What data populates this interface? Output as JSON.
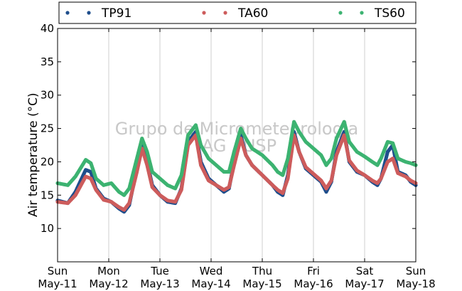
{
  "chart_data": {
    "type": "scatter",
    "ylabel": "Air temperature (°C)",
    "ylim": [
      5,
      40
    ],
    "yticks": [
      10,
      15,
      20,
      25,
      30,
      35,
      40
    ],
    "xlim": [
      0,
      7
    ],
    "xticks": [
      {
        "x": 0,
        "day": "Sun",
        "date": "May-11"
      },
      {
        "x": 1,
        "day": "Mon",
        "date": "May-12"
      },
      {
        "x": 2,
        "day": "Tue",
        "date": "May-13"
      },
      {
        "x": 3,
        "day": "Wed",
        "date": "May-14"
      },
      {
        "x": 4,
        "day": "Thu",
        "date": "May-15"
      },
      {
        "x": 5,
        "day": "Fri",
        "date": "May-16"
      },
      {
        "x": 6,
        "day": "Sat",
        "date": "May-17"
      },
      {
        "x": 7,
        "day": "Sun",
        "date": "May-18"
      }
    ],
    "grid": "vertical",
    "legend_position": "top",
    "watermark": [
      "Grupo de Micrometeorologia",
      "IAG / USP"
    ],
    "series": [
      {
        "name": "TP91",
        "color": "#1f4e8c",
        "points": [
          [
            0,
            14.2
          ],
          [
            0.2,
            13.8
          ],
          [
            0.35,
            15.5
          ],
          [
            0.55,
            18.8
          ],
          [
            0.65,
            18.5
          ],
          [
            0.75,
            16.0
          ],
          [
            0.9,
            14.5
          ],
          [
            1.05,
            14.0
          ],
          [
            1.2,
            13.0
          ],
          [
            1.3,
            12.5
          ],
          [
            1.4,
            13.5
          ],
          [
            1.55,
            19.0
          ],
          [
            1.65,
            23.0
          ],
          [
            1.75,
            20.0
          ],
          [
            1.85,
            16.5
          ],
          [
            2.0,
            15.0
          ],
          [
            2.15,
            14.0
          ],
          [
            2.3,
            13.8
          ],
          [
            2.42,
            16.0
          ],
          [
            2.55,
            23.0
          ],
          [
            2.7,
            24.5
          ],
          [
            2.8,
            20.0
          ],
          [
            2.95,
            17.5
          ],
          [
            3.1,
            16.5
          ],
          [
            3.25,
            15.5
          ],
          [
            3.35,
            16.0
          ],
          [
            3.45,
            20.0
          ],
          [
            3.58,
            24.0
          ],
          [
            3.68,
            21.0
          ],
          [
            3.8,
            19.5
          ],
          [
            4.0,
            18.0
          ],
          [
            4.2,
            16.5
          ],
          [
            4.3,
            15.5
          ],
          [
            4.4,
            15.0
          ],
          [
            4.5,
            18.0
          ],
          [
            4.62,
            24.5
          ],
          [
            4.72,
            21.5
          ],
          [
            4.85,
            19.0
          ],
          [
            5.0,
            18.0
          ],
          [
            5.15,
            17.0
          ],
          [
            5.25,
            15.5
          ],
          [
            5.35,
            17.0
          ],
          [
            5.45,
            21.5
          ],
          [
            5.6,
            24.5
          ],
          [
            5.7,
            20.0
          ],
          [
            5.85,
            18.5
          ],
          [
            6.0,
            18.0
          ],
          [
            6.15,
            17.0
          ],
          [
            6.25,
            16.5
          ],
          [
            6.32,
            17.5
          ],
          [
            6.45,
            21.5
          ],
          [
            6.55,
            22.5
          ],
          [
            6.65,
            18.5
          ],
          [
            6.8,
            18.0
          ],
          [
            6.9,
            17.0
          ],
          [
            7.0,
            16.5
          ]
        ]
      },
      {
        "name": "TA60",
        "color": "#cd5c5c",
        "points": [
          [
            0,
            14.0
          ],
          [
            0.2,
            13.8
          ],
          [
            0.35,
            15.0
          ],
          [
            0.55,
            17.8
          ],
          [
            0.65,
            17.5
          ],
          [
            0.75,
            15.8
          ],
          [
            0.9,
            14.3
          ],
          [
            1.05,
            14.0
          ],
          [
            1.2,
            13.2
          ],
          [
            1.3,
            12.8
          ],
          [
            1.4,
            13.8
          ],
          [
            1.55,
            18.5
          ],
          [
            1.65,
            22.0
          ],
          [
            1.75,
            19.5
          ],
          [
            1.85,
            16.2
          ],
          [
            2.0,
            15.0
          ],
          [
            2.15,
            14.2
          ],
          [
            2.3,
            14.0
          ],
          [
            2.42,
            15.8
          ],
          [
            2.55,
            22.5
          ],
          [
            2.7,
            24.0
          ],
          [
            2.8,
            19.5
          ],
          [
            2.95,
            17.2
          ],
          [
            3.1,
            16.5
          ],
          [
            3.25,
            15.8
          ],
          [
            3.35,
            16.2
          ],
          [
            3.45,
            19.5
          ],
          [
            3.58,
            23.5
          ],
          [
            3.68,
            21.0
          ],
          [
            3.8,
            19.5
          ],
          [
            4.0,
            18.0
          ],
          [
            4.2,
            16.5
          ],
          [
            4.3,
            15.8
          ],
          [
            4.4,
            15.3
          ],
          [
            4.5,
            17.5
          ],
          [
            4.62,
            24.0
          ],
          [
            4.72,
            21.5
          ],
          [
            4.85,
            19.2
          ],
          [
            5.0,
            18.2
          ],
          [
            5.15,
            17.2
          ],
          [
            5.25,
            16.0
          ],
          [
            5.35,
            17.2
          ],
          [
            5.45,
            21.0
          ],
          [
            5.6,
            24.0
          ],
          [
            5.7,
            20.2
          ],
          [
            5.85,
            18.7
          ],
          [
            6.0,
            18.0
          ],
          [
            6.15,
            17.2
          ],
          [
            6.25,
            16.8
          ],
          [
            6.32,
            17.5
          ],
          [
            6.45,
            20.0
          ],
          [
            6.55,
            20.5
          ],
          [
            6.65,
            18.3
          ],
          [
            6.8,
            17.8
          ],
          [
            6.9,
            17.2
          ],
          [
            7.0,
            16.8
          ]
        ]
      },
      {
        "name": "TS60",
        "color": "#3cb371",
        "points": [
          [
            0,
            16.8
          ],
          [
            0.2,
            16.5
          ],
          [
            0.35,
            17.8
          ],
          [
            0.55,
            20.3
          ],
          [
            0.65,
            19.8
          ],
          [
            0.75,
            17.5
          ],
          [
            0.9,
            16.5
          ],
          [
            1.05,
            16.8
          ],
          [
            1.2,
            15.5
          ],
          [
            1.3,
            15.0
          ],
          [
            1.4,
            16.0
          ],
          [
            1.55,
            20.5
          ],
          [
            1.65,
            23.5
          ],
          [
            1.75,
            21.5
          ],
          [
            1.85,
            18.5
          ],
          [
            2.0,
            17.5
          ],
          [
            2.15,
            16.5
          ],
          [
            2.3,
            16.0
          ],
          [
            2.42,
            18.0
          ],
          [
            2.55,
            24.0
          ],
          [
            2.7,
            25.5
          ],
          [
            2.8,
            22.5
          ],
          [
            2.95,
            20.5
          ],
          [
            3.1,
            19.5
          ],
          [
            3.25,
            18.5
          ],
          [
            3.35,
            18.5
          ],
          [
            3.45,
            21.5
          ],
          [
            3.58,
            25.0
          ],
          [
            3.68,
            23.5
          ],
          [
            3.8,
            22.0
          ],
          [
            4.0,
            21.0
          ],
          [
            4.2,
            19.5
          ],
          [
            4.3,
            18.5
          ],
          [
            4.4,
            18.0
          ],
          [
            4.5,
            20.5
          ],
          [
            4.62,
            26.0
          ],
          [
            4.72,
            24.5
          ],
          [
            4.85,
            23.0
          ],
          [
            5.0,
            22.0
          ],
          [
            5.15,
            21.0
          ],
          [
            5.25,
            19.5
          ],
          [
            5.35,
            20.5
          ],
          [
            5.45,
            23.5
          ],
          [
            5.6,
            26.0
          ],
          [
            5.7,
            23.0
          ],
          [
            5.85,
            21.5
          ],
          [
            6.0,
            20.8
          ],
          [
            6.15,
            20.0
          ],
          [
            6.25,
            19.5
          ],
          [
            6.32,
            20.5
          ],
          [
            6.45,
            23.0
          ],
          [
            6.55,
            22.8
          ],
          [
            6.65,
            20.5
          ],
          [
            6.8,
            20.0
          ],
          [
            6.9,
            19.8
          ],
          [
            7.0,
            19.5
          ]
        ]
      }
    ]
  }
}
